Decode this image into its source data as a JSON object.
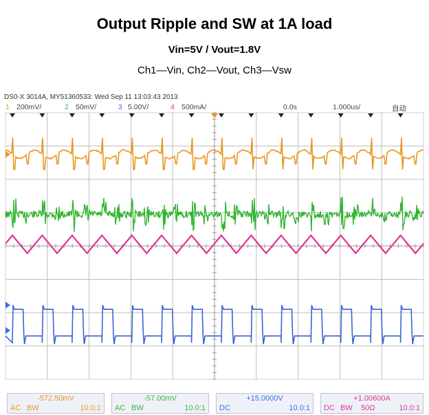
{
  "chart_data": {
    "type": "line",
    "title": "Output Ripple and SW at 1A load",
    "subtitle": "Vin=5V / Vout=1.8V",
    "caption": "Ch1—Vin, Ch2—Vout, Ch3—Vsw",
    "instrument_header": "DS0-X 3014A, MY51360533: Wed Sep 11 13:03:43 2013",
    "grid": true,
    "grid_divisions": {
      "horizontal": 10,
      "vertical": 8
    },
    "switching_cycles_on_screen": 14,
    "channel_settings": {
      "ch1": {
        "number": "1",
        "scale": "200mV/"
      },
      "ch2": {
        "number": "2",
        "scale": "50mV/"
      },
      "ch3": {
        "number": "3",
        "scale": "5.00V/"
      },
      "ch4": {
        "number": "4",
        "scale": "500mA/"
      },
      "time_offset": "0.0s",
      "time_scale": "1.000us/",
      "trigger_mode": "自动"
    },
    "series": [
      {
        "channel": "1",
        "name": "Vin",
        "color": "#e8961e",
        "waveform": "ripple with switching spikes"
      },
      {
        "channel": "2",
        "name": "Vout",
        "color": "#2fb52f",
        "waveform": "ripple with switching spikes"
      },
      {
        "channel": "3",
        "name": "Vsw",
        "color": "#3a63d6",
        "waveform": "square switching"
      },
      {
        "channel": "4",
        "color": "#e0338f",
        "waveform": "triangular inductor current"
      }
    ],
    "measurements": [
      {
        "value": "-572.50mV",
        "coupling": "AC",
        "bw": "BW",
        "impedance": "",
        "ratio": "10.0:1",
        "color": "#e8961e"
      },
      {
        "value": "-57.00mV",
        "coupling": "AC",
        "bw": "BW",
        "impedance": "",
        "ratio": "10.0:1",
        "color": "#2fb52f"
      },
      {
        "value": "+15.0000V",
        "coupling": "DC",
        "bw": "",
        "impedance": "",
        "ratio": "10.0:1",
        "color": "#3a6fe0"
      },
      {
        "value": "+1.00600A",
        "coupling": "DC",
        "bw": "BW",
        "impedance": "50Ω",
        "ratio": "10.0:1",
        "color": "#e0338f"
      }
    ]
  }
}
